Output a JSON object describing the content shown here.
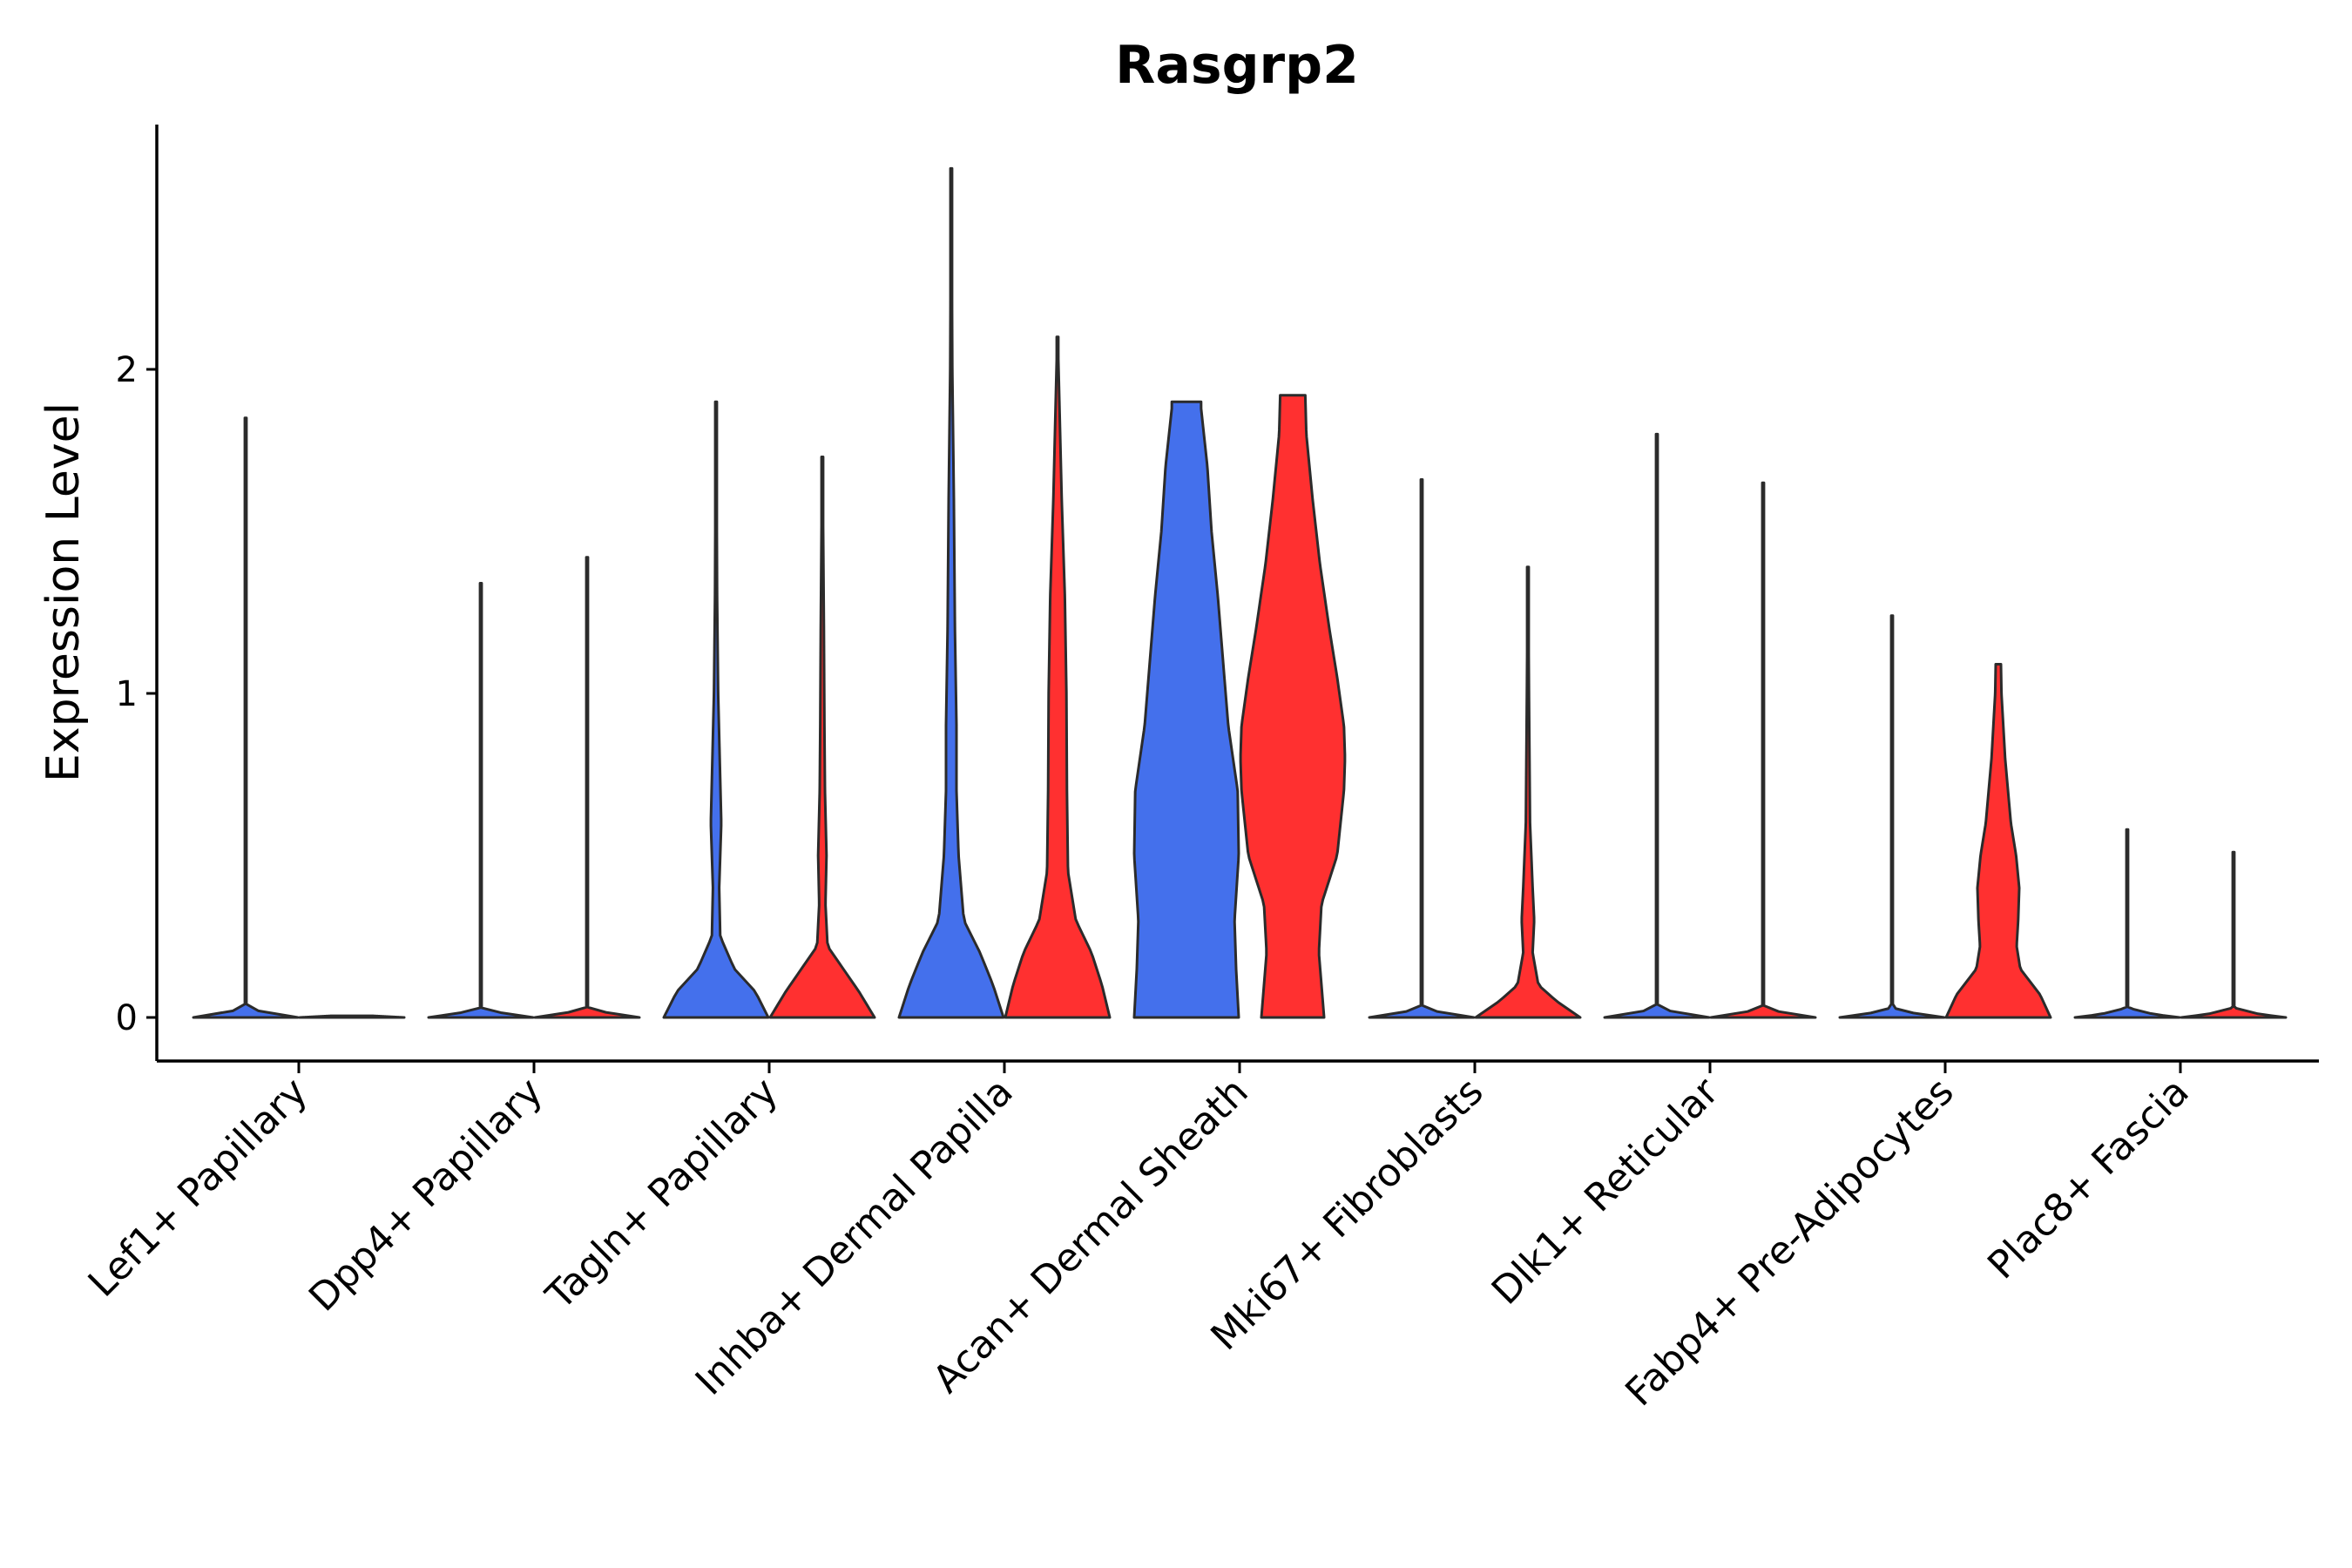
{
  "chart_data": {
    "type": "violin",
    "title": "Rasgrp2",
    "xlabel": "",
    "ylabel": "Expression Level",
    "ylim": [
      -0.13,
      2.77
    ],
    "yticks": [
      0,
      1,
      2
    ],
    "legend": "none",
    "grid": false,
    "colors": {
      "group_a": "#4470ec",
      "group_b": "#ff3030",
      "outline": "#2b2b2b"
    },
    "categories": [
      "Lef1+ Papillary",
      "Dpp4+ Papillary",
      "Tagln+ Papillary",
      "Inhba+ Dermal Papilla",
      "Acan+ Dermal Sheath",
      "Mki67+ Fibroblasts",
      "Dlk1+ Reticular",
      "Fabp4+ Pre-Adipocytes",
      "Plac8+ Fascia"
    ],
    "series": [
      {
        "name": "group_a",
        "color": "#4470ec",
        "violins": [
          {
            "max": 1.85,
            "profile": [
              [
                0,
                1.0
              ],
              [
                0.01,
                0.5
              ],
              [
                0.03,
                0.01
              ],
              [
                1.85,
                0.004
              ]
            ]
          },
          {
            "max": 1.34,
            "profile": [
              [
                0,
                1.0
              ],
              [
                0.01,
                0.5
              ],
              [
                0.03,
                0.01
              ],
              [
                1.34,
                0.004
              ]
            ]
          },
          {
            "max": 1.9,
            "profile": [
              [
                0,
                1.0
              ],
              [
                0.08,
                0.75
              ],
              [
                0.15,
                0.35
              ],
              [
                0.25,
                0.08
              ],
              [
                0.4,
                0.06
              ],
              [
                0.6,
                0.1
              ],
              [
                0.8,
                0.07
              ],
              [
                1.0,
                0.04
              ],
              [
                1.3,
                0.02
              ],
              [
                1.9,
                0.005
              ]
            ]
          },
          {
            "max": 2.62,
            "profile": [
              [
                0,
                1.0
              ],
              [
                0.1,
                0.8
              ],
              [
                0.2,
                0.55
              ],
              [
                0.3,
                0.24
              ],
              [
                0.5,
                0.14
              ],
              [
                0.7,
                0.1
              ],
              [
                0.9,
                0.1
              ],
              [
                1.2,
                0.07
              ],
              [
                1.6,
                0.05
              ],
              [
                2.0,
                0.02
              ],
              [
                2.62,
                0.004
              ]
            ]
          },
          {
            "max": 1.9,
            "profile": [
              [
                0,
                1.0
              ],
              [
                0.15,
                0.95
              ],
              [
                0.3,
                0.92
              ],
              [
                0.5,
                1.0
              ],
              [
                0.7,
                0.98
              ],
              [
                0.9,
                0.8
              ],
              [
                1.1,
                0.7
              ],
              [
                1.3,
                0.6
              ],
              [
                1.5,
                0.48
              ],
              [
                1.7,
                0.4
              ],
              [
                1.88,
                0.28
              ],
              [
                1.9,
                0.28
              ]
            ]
          },
          {
            "max": 1.66,
            "profile": [
              [
                0,
                1.0
              ],
              [
                0.01,
                0.5
              ],
              [
                0.03,
                0.01
              ],
              [
                1.66,
                0.004
              ]
            ]
          },
          {
            "max": 1.8,
            "profile": [
              [
                0,
                1.0
              ],
              [
                0.01,
                0.5
              ],
              [
                0.03,
                0.01
              ],
              [
                1.8,
                0.004
              ]
            ]
          },
          {
            "max": 1.24,
            "profile": [
              [
                0,
                1.0
              ],
              [
                0.01,
                0.5
              ],
              [
                0.03,
                0.01
              ],
              [
                1.24,
                0.004
              ]
            ]
          },
          {
            "max": 0.58,
            "profile": [
              [
                0,
                1.0
              ],
              [
                0.01,
                0.5
              ],
              [
                0.03,
                0.01
              ],
              [
                0.58,
                0.004
              ]
            ]
          }
        ]
      },
      {
        "name": "group_b",
        "color": "#ff3030",
        "violins": [
          {
            "max": 0.0,
            "profile": [
              [
                0,
                1.0
              ],
              [
                0.005,
                0.4
              ],
              [
                0.01,
                0.0
              ]
            ]
          },
          {
            "max": 1.42,
            "profile": [
              [
                0,
                1.0
              ],
              [
                0.01,
                0.5
              ],
              [
                0.03,
                0.01
              ],
              [
                1.42,
                0.004
              ]
            ]
          },
          {
            "max": 1.73,
            "profile": [
              [
                0,
                1.0
              ],
              [
                0.08,
                0.7
              ],
              [
                0.15,
                0.4
              ],
              [
                0.22,
                0.1
              ],
              [
                0.35,
                0.06
              ],
              [
                0.5,
                0.08
              ],
              [
                0.7,
                0.05
              ],
              [
                0.9,
                0.04
              ],
              [
                1.2,
                0.03
              ],
              [
                1.73,
                0.005
              ]
            ]
          },
          {
            "max": 2.1,
            "profile": [
              [
                0,
                1.0
              ],
              [
                0.1,
                0.85
              ],
              [
                0.2,
                0.65
              ],
              [
                0.3,
                0.35
              ],
              [
                0.45,
                0.2
              ],
              [
                0.7,
                0.18
              ],
              [
                1.0,
                0.17
              ],
              [
                1.3,
                0.14
              ],
              [
                1.6,
                0.08
              ],
              [
                2.1,
                0.005
              ]
            ]
          },
          {
            "max": 1.92,
            "profile": [
              [
                0,
                0.6
              ],
              [
                0.2,
                0.5
              ],
              [
                0.35,
                0.55
              ],
              [
                0.5,
                0.85
              ],
              [
                0.7,
                0.98
              ],
              [
                0.8,
                1.0
              ],
              [
                0.9,
                0.98
              ],
              [
                1.05,
                0.85
              ],
              [
                1.2,
                0.7
              ],
              [
                1.4,
                0.52
              ],
              [
                1.6,
                0.38
              ],
              [
                1.8,
                0.26
              ],
              [
                1.92,
                0.24
              ]
            ]
          },
          {
            "max": 1.39,
            "profile": [
              [
                0,
                1.0
              ],
              [
                0.05,
                0.55
              ],
              [
                0.1,
                0.2
              ],
              [
                0.2,
                0.09
              ],
              [
                0.3,
                0.12
              ],
              [
                0.4,
                0.09
              ],
              [
                0.6,
                0.04
              ],
              [
                1.0,
                0.02
              ],
              [
                1.39,
                0.004
              ]
            ]
          },
          {
            "max": 1.65,
            "profile": [
              [
                0,
                1.0
              ],
              [
                0.01,
                0.5
              ],
              [
                0.03,
                0.01
              ],
              [
                1.65,
                0.004
              ]
            ]
          },
          {
            "max": 1.09,
            "profile": [
              [
                0,
                1.0
              ],
              [
                0.07,
                0.8
              ],
              [
                0.15,
                0.42
              ],
              [
                0.22,
                0.35
              ],
              [
                0.3,
                0.38
              ],
              [
                0.4,
                0.4
              ],
              [
                0.5,
                0.34
              ],
              [
                0.6,
                0.24
              ],
              [
                0.8,
                0.13
              ],
              [
                1.0,
                0.06
              ],
              [
                1.09,
                0.05
              ]
            ]
          },
          {
            "max": 0.51,
            "profile": [
              [
                0,
                1.0
              ],
              [
                0.01,
                0.5
              ],
              [
                0.03,
                0.01
              ],
              [
                0.51,
                0.004
              ]
            ]
          }
        ]
      }
    ]
  }
}
